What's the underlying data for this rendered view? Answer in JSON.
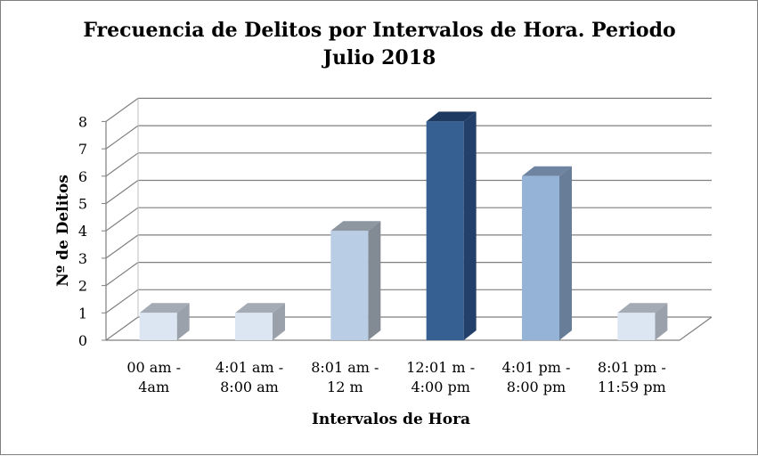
{
  "chart_data": {
    "type": "bar",
    "title_lines": [
      "Frecuencia de Delitos por Intervalos de Hora. Periodo",
      "Julio  2018"
    ],
    "xlabel": "Intervalos de Hora",
    "ylabel": "Nº de Delitos",
    "ylim": [
      0,
      8
    ],
    "yticks": [
      "0",
      "1",
      "2",
      "3",
      "4",
      "5",
      "6",
      "7",
      "8"
    ],
    "categories": [
      [
        "00 am -",
        "4am"
      ],
      [
        "4:01 am -",
        "8:00 am"
      ],
      [
        "8:01 am -",
        "12 m"
      ],
      [
        "12:01 m -",
        "4:00 pm"
      ],
      [
        "4:01 pm -",
        "8:00 pm"
      ],
      [
        "8:01 pm -",
        "11:59 pm"
      ]
    ],
    "values": [
      1,
      1,
      4,
      8,
      6,
      1
    ],
    "bar_colors": [
      {
        "front": "#dce6f2",
        "side": "#9aa1ab",
        "top": "#a4abb5"
      },
      {
        "front": "#dce6f2",
        "side": "#9aa1ab",
        "top": "#a4abb5"
      },
      {
        "front": "#b9cde5",
        "side": "#828a94",
        "top": "#8e96a0"
      },
      {
        "front": "#376092",
        "side": "#22406a",
        "top": "#1f3a60"
      },
      {
        "front": "#95b3d7",
        "side": "#687d97",
        "top": "#6f84a0"
      },
      {
        "front": "#dce6f2",
        "side": "#9aa1ab",
        "top": "#a4abb5"
      }
    ],
    "gridlines": true,
    "three_d": true
  }
}
